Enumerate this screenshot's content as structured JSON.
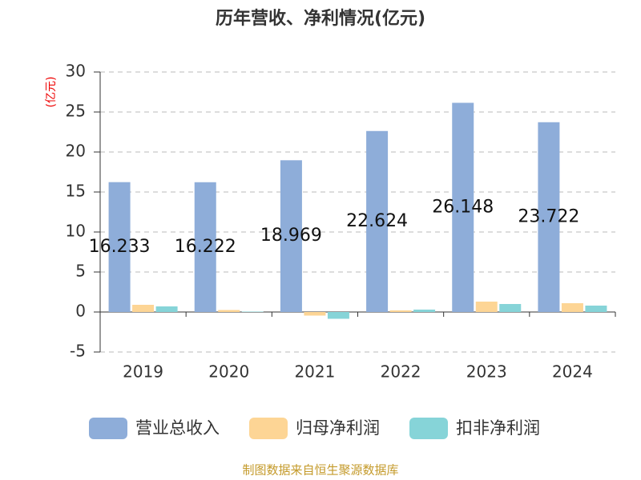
{
  "chart_data": {
    "type": "bar",
    "title": "历年营收、净利情况(亿元)",
    "y_label": "(亿元)",
    "categories": [
      "2019",
      "2020",
      "2021",
      "2022",
      "2023",
      "2024"
    ],
    "series": [
      {
        "name": "营业总收入",
        "color": "#8eadd9",
        "values": [
          16.233,
          16.222,
          18.969,
          22.624,
          26.148,
          23.722
        ],
        "show_labels": true
      },
      {
        "name": "归母净利润",
        "color": "#fdd595",
        "values": [
          0.9,
          0.25,
          -0.45,
          0.2,
          1.3,
          1.1
        ]
      },
      {
        "name": "扣非净利润",
        "color": "#86d4d8",
        "values": [
          0.7,
          0.05,
          -0.85,
          0.3,
          1.0,
          0.8
        ]
      }
    ],
    "ylim": [
      -5,
      30
    ],
    "yticks": [
      -5,
      0,
      5,
      10,
      15,
      20,
      25,
      30
    ],
    "grid": true,
    "source": "制图数据来自恒生聚源数据库"
  }
}
